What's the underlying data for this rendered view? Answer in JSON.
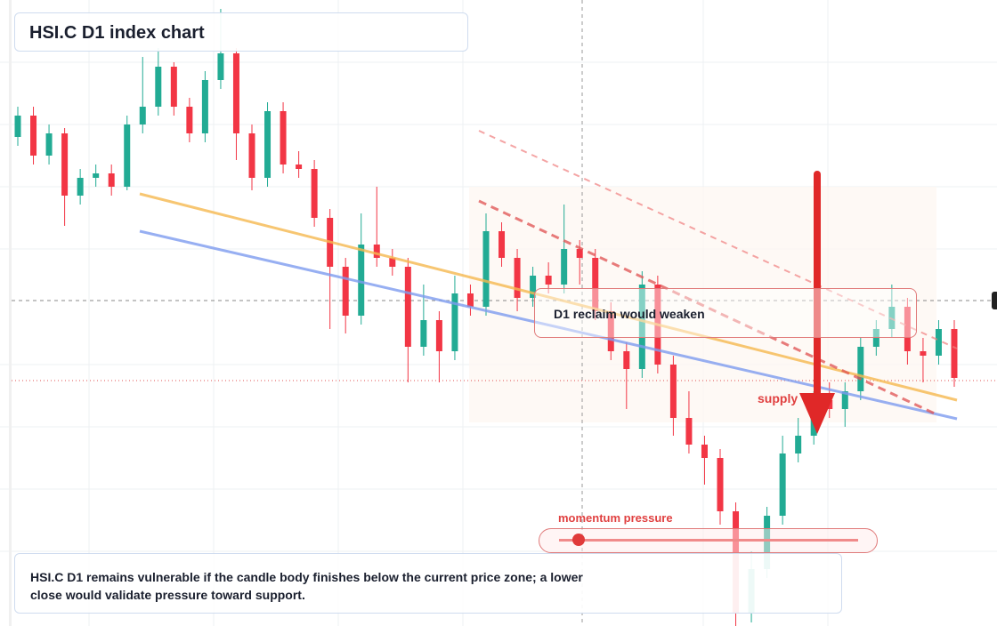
{
  "chart_data": {
    "type": "candlestick",
    "title": "HSI.C D1 index chart",
    "annotations": {
      "zone": "D1 reclaim would weaken",
      "supply": "supply",
      "momentum": "momentum pressure",
      "note": "HSI.C D1 remains vulnerable if the candle body finishes below the current price zone; a lower close would validate pressure toward support."
    },
    "up_color": "#22ab94",
    "down_color": "#f23645",
    "ylim": [
      0,
      704
    ],
    "open": [
      550,
      574,
      529,
      554,
      484,
      504,
      509,
      494,
      564,
      584,
      629,
      584,
      554,
      614,
      644,
      554,
      504,
      579,
      519,
      514,
      459,
      404,
      349,
      429,
      414,
      404,
      314,
      344,
      309,
      374,
      359,
      444,
      414,
      369,
      394,
      384,
      424,
      414,
      354,
      309,
      289,
      384,
      294,
      234,
      204,
      189,
      129,
      14,
      64,
      124,
      194,
      214,
      254,
      244,
      264,
      314,
      334,
      359,
      309,
      304,
      334
    ],
    "high": [
      584,
      584,
      564,
      560,
      514,
      519,
      519,
      574,
      640,
      650,
      634,
      594,
      624,
      694,
      650,
      564,
      589,
      589,
      534,
      524,
      469,
      414,
      464,
      494,
      424,
      414,
      384,
      354,
      394,
      384,
      464,
      454,
      424,
      404,
      409,
      474,
      434,
      424,
      364,
      319,
      399,
      394,
      304,
      264,
      214,
      199,
      139,
      84,
      134,
      214,
      234,
      264,
      274,
      274,
      324,
      344,
      384,
      369,
      324,
      344,
      344
    ],
    "low": [
      540,
      519,
      519,
      450,
      474,
      494,
      484,
      490,
      554,
      574,
      574,
      544,
      544,
      604,
      524,
      490,
      494,
      509,
      504,
      449,
      334,
      329,
      339,
      404,
      394,
      274,
      304,
      274,
      299,
      349,
      349,
      404,
      354,
      359,
      374,
      374,
      384,
      344,
      299,
      244,
      279,
      284,
      214,
      194,
      159,
      114,
      0,
      4,
      54,
      114,
      184,
      204,
      234,
      224,
      254,
      304,
      324,
      294,
      274,
      294,
      269
    ],
    "close": [
      574,
      529,
      554,
      484,
      504,
      509,
      494,
      564,
      584,
      629,
      584,
      554,
      614,
      644,
      554,
      504,
      579,
      519,
      514,
      459,
      404,
      349,
      429,
      414,
      404,
      314,
      344,
      309,
      374,
      359,
      444,
      414,
      369,
      394,
      384,
      424,
      414,
      354,
      309,
      289,
      384,
      294,
      234,
      204,
      189,
      129,
      14,
      64,
      124,
      194,
      214,
      254,
      244,
      264,
      314,
      334,
      359,
      309,
      304,
      334,
      279
    ]
  }
}
